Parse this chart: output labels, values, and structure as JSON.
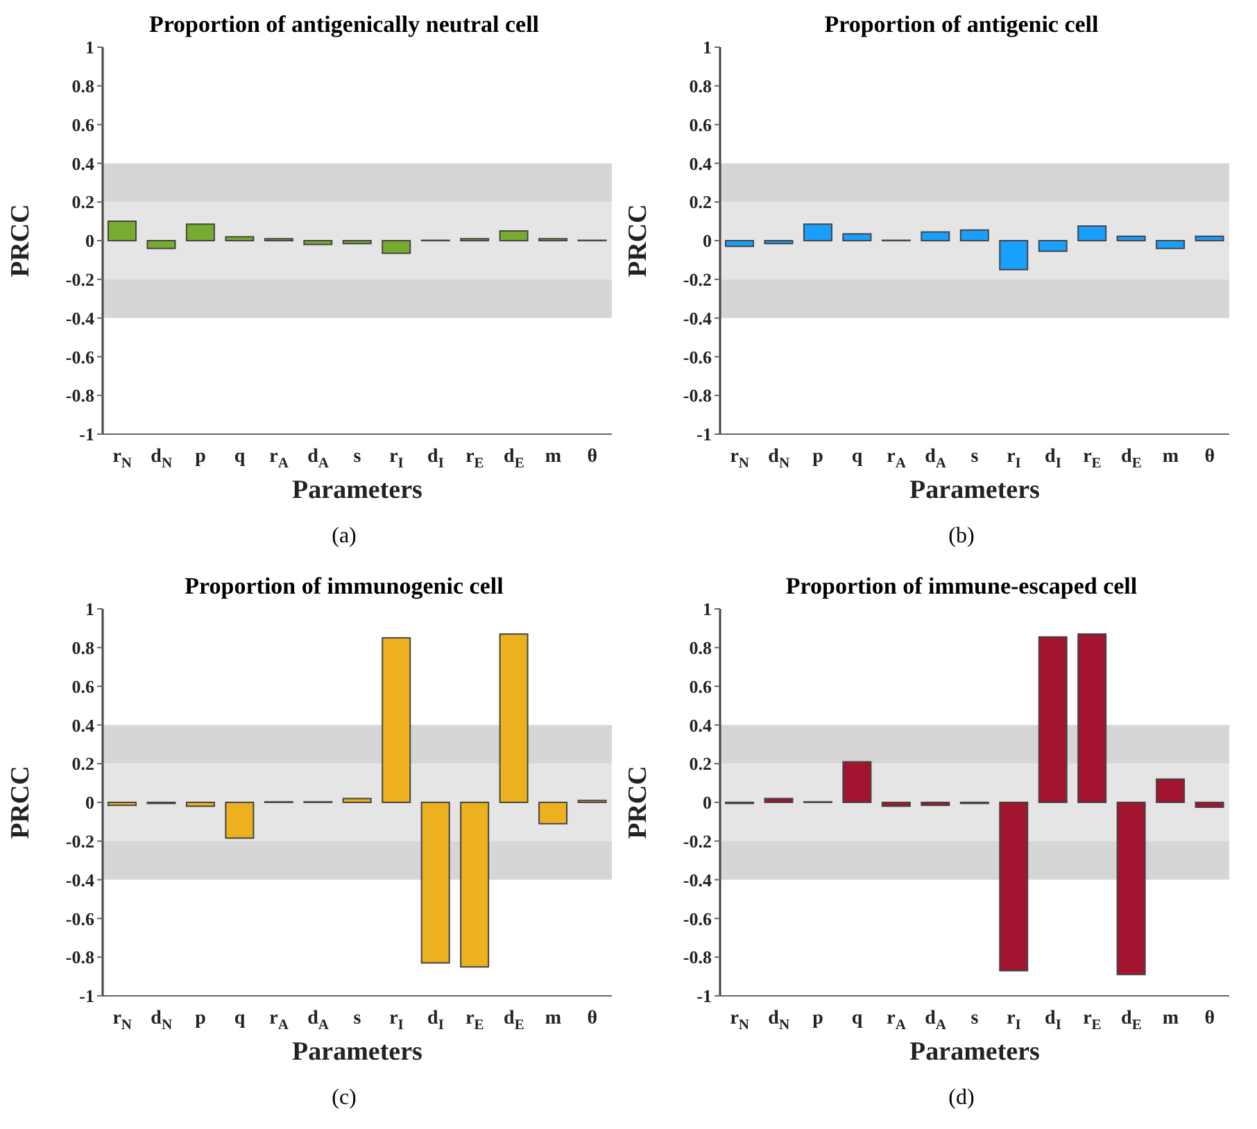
{
  "chart_data": [
    {
      "type": "bar",
      "title": "Proportion of antigenically neutral cell",
      "xlabel": "Parameters",
      "ylabel": "PRCC",
      "categories": [
        "r$_{N}$",
        "d$_{N}$",
        "p",
        "q",
        "r$_{A}$",
        "d$_{A}$",
        "s",
        "r$_{I}$",
        "d$_{I}$",
        "r$_{E}$",
        "d$_{E}$",
        "m",
        "θ"
      ],
      "values": [
        0.1,
        -0.04,
        0.085,
        0.02,
        0.01,
        -0.02,
        -0.015,
        -0.065,
        0.002,
        0.01,
        0.05,
        0.01,
        0.002
      ],
      "color": "#77ac30",
      "ylim": [
        -1,
        1
      ],
      "yticks": [
        -1,
        -0.8,
        -0.6,
        -0.4,
        -0.2,
        0,
        0.2,
        0.4,
        0.6,
        0.8,
        1
      ],
      "bands": [
        {
          "axis": "y",
          "from": 0.2,
          "to": 0.4,
          "color": "#d6d6d6"
        },
        {
          "axis": "y",
          "from": -0.2,
          "to": 0.2,
          "color": "#e5e5e5"
        },
        {
          "axis": "y",
          "from": -0.4,
          "to": -0.2,
          "color": "#d6d6d6"
        }
      ],
      "annotations": [
        "(a)"
      ]
    },
    {
      "type": "bar",
      "title": "Proportion of antigenic cell",
      "xlabel": "Parameters",
      "ylabel": "PRCC",
      "categories": [
        "r$_{N}$",
        "d$_{N}$",
        "p",
        "q",
        "r$_{A}$",
        "d$_{A}$",
        "s",
        "r$_{I}$",
        "d$_{I}$",
        "r$_{E}$",
        "d$_{E}$",
        "m",
        "θ"
      ],
      "values": [
        -0.03,
        -0.015,
        0.085,
        0.035,
        0.002,
        0.045,
        0.055,
        -0.15,
        -0.055,
        0.075,
        0.022,
        -0.04,
        0.022
      ],
      "color": "#19a0fe",
      "ylim": [
        -1,
        1
      ],
      "yticks": [
        -1,
        -0.8,
        -0.6,
        -0.4,
        -0.2,
        0,
        0.2,
        0.4,
        0.6,
        0.8,
        1
      ],
      "bands": [
        {
          "axis": "y",
          "from": 0.2,
          "to": 0.4,
          "color": "#d6d6d6"
        },
        {
          "axis": "y",
          "from": -0.2,
          "to": 0.2,
          "color": "#e5e5e5"
        },
        {
          "axis": "y",
          "from": -0.4,
          "to": -0.2,
          "color": "#d6d6d6"
        }
      ],
      "annotations": [
        "(b)"
      ]
    },
    {
      "type": "bar",
      "title": "Proportion of immunogenic cell",
      "xlabel": "Parameters",
      "ylabel": "PRCC",
      "categories": [
        "r$_{N}$",
        "d$_{N}$",
        "p",
        "q",
        "r$_{A}$",
        "d$_{A}$",
        "s",
        "r$_{I}$",
        "d$_{I}$",
        "r$_{E}$",
        "d$_{E}$",
        "m",
        "θ"
      ],
      "values": [
        -0.015,
        -0.005,
        -0.02,
        -0.185,
        0.003,
        0.003,
        0.02,
        0.85,
        -0.83,
        -0.85,
        0.87,
        -0.11,
        0.01
      ],
      "color": "#edb120",
      "ylim": [
        -1,
        1
      ],
      "yticks": [
        -1,
        -0.8,
        -0.6,
        -0.4,
        -0.2,
        0,
        0.2,
        0.4,
        0.6,
        0.8,
        1
      ],
      "bands": [
        {
          "axis": "y",
          "from": 0.2,
          "to": 0.4,
          "color": "#d6d6d6"
        },
        {
          "axis": "y",
          "from": -0.2,
          "to": 0.2,
          "color": "#e5e5e5"
        },
        {
          "axis": "y",
          "from": -0.4,
          "to": -0.2,
          "color": "#d6d6d6"
        }
      ],
      "annotations": [
        "(c)"
      ]
    },
    {
      "type": "bar",
      "title": "Proportion of immune-escaped cell",
      "xlabel": "Parameters",
      "ylabel": "PRCC",
      "categories": [
        "r$_{N}$",
        "d$_{N}$",
        "p",
        "q",
        "r$_{A}$",
        "d$_{A}$",
        "s",
        "r$_{I}$",
        "d$_{I}$",
        "r$_{E}$",
        "d$_{E}$",
        "m",
        "θ"
      ],
      "values": [
        -0.005,
        0.02,
        0.003,
        0.21,
        -0.02,
        -0.015,
        -0.005,
        -0.87,
        0.855,
        0.87,
        -0.89,
        0.12,
        -0.025
      ],
      "color": "#a2142f",
      "ylim": [
        -1,
        1
      ],
      "yticks": [
        -1,
        -0.8,
        -0.6,
        -0.4,
        -0.2,
        0,
        0.2,
        0.4,
        0.6,
        0.8,
        1
      ],
      "bands": [
        {
          "axis": "y",
          "from": 0.2,
          "to": 0.4,
          "color": "#d6d6d6"
        },
        {
          "axis": "y",
          "from": -0.2,
          "to": 0.2,
          "color": "#e5e5e5"
        },
        {
          "axis": "y",
          "from": -0.4,
          "to": -0.2,
          "color": "#d6d6d6"
        }
      ],
      "annotations": [
        "(d)"
      ]
    }
  ]
}
